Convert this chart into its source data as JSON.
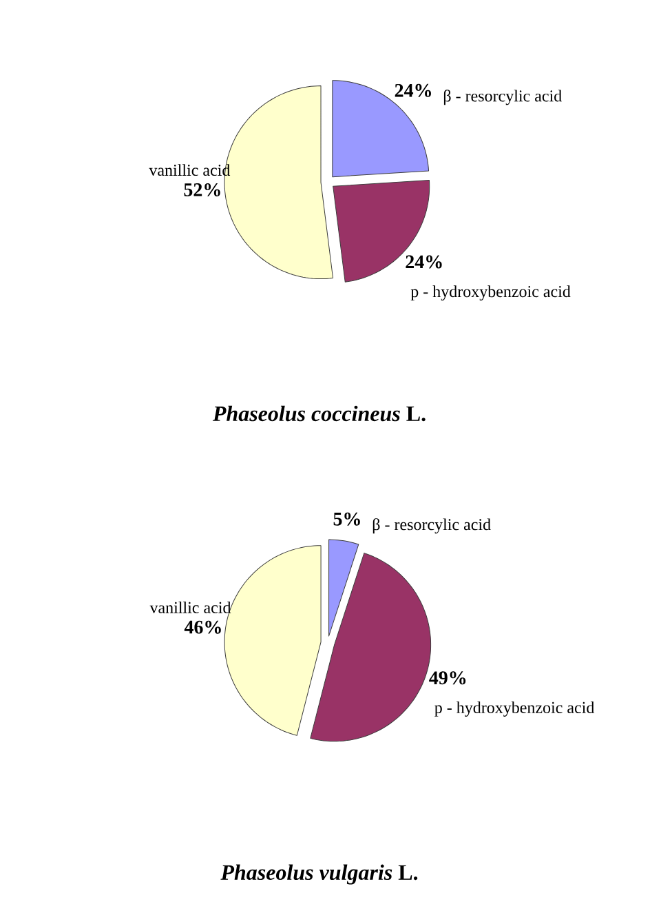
{
  "chart_data": [
    {
      "type": "pie",
      "title": "*Phaseolus coccineus* L.",
      "categories": [
        "β - resorcylic acid",
        "p - hydroxybenzoic acid",
        "vanillic acid"
      ],
      "values": [
        24,
        24,
        52
      ],
      "value_labels": [
        "24%",
        "24%",
        "52%"
      ],
      "colors": [
        "#9999ff",
        "#993366",
        "#ffffcc"
      ]
    },
    {
      "type": "pie",
      "title": "*Phaseolus vulgaris* L.",
      "categories": [
        "β - resorcylic acid",
        "p - hydroxybenzoic acid",
        "vanillic acid"
      ],
      "values": [
        5,
        49,
        46
      ],
      "value_labels": [
        "5%",
        "49%",
        "46%"
      ],
      "colors": [
        "#9999ff",
        "#993366",
        "#ffffcc"
      ]
    }
  ]
}
